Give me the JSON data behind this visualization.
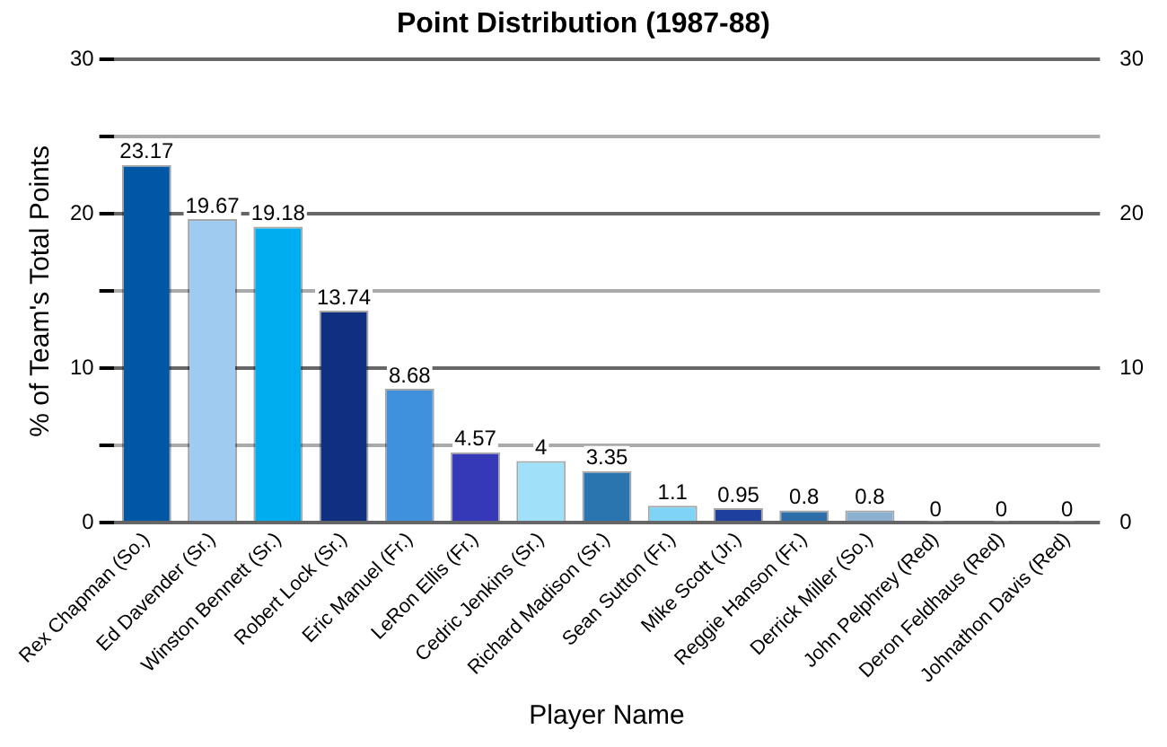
{
  "chart_data": {
    "type": "bar",
    "title": "Point Distribution (1987-88)",
    "xlabel": "Player Name",
    "ylabel": "% of Team's Total Points",
    "categories": [
      "Rex Chapman (So.)",
      "Ed Davender (Sr.)",
      "Winston Bennett (Sr.)",
      "Robert Lock (Sr.)",
      "Eric Manuel (Fr.)",
      "LeRon Ellis (Fr.)",
      "Cedric Jenkins (Sr.)",
      "Richard Madison (Sr.)",
      "Sean Sutton (Fr.)",
      "Mike Scott (Jr.)",
      "Reggie Hanson (Fr.)",
      "Derrick Miller (So.)",
      "John Pelphrey (Red)",
      "Deron Feldhaus (Red)",
      "Johnathon Davis (Red)"
    ],
    "values": [
      23.17,
      19.67,
      19.18,
      13.74,
      8.68,
      4.57,
      4,
      3.35,
      1.1,
      0.95,
      0.8,
      0.8,
      0,
      0,
      0
    ],
    "colors": [
      "#0057a5",
      "#9ecbef",
      "#00aeef",
      "#0f2f80",
      "#3f91de",
      "#3539b8",
      "#a0e0f8",
      "#2a74b0",
      "#7fd4f5",
      "#1f3f9f",
      "#2d6ea8",
      "#8cb0d0",
      "#0057a5",
      "#9ecbef",
      "#00aeef"
    ],
    "data_labels": true,
    "ylim": [
      0,
      30
    ],
    "yticks": [
      0,
      {
        "value": 5,
        "label": null
      },
      10,
      {
        "value": 15,
        "label": null
      },
      20,
      {
        "value": 25,
        "label": null
      },
      30
    ],
    "y2lim": [
      0,
      30
    ],
    "y2ticks": [
      0,
      {
        "value": 5,
        "label": null
      },
      10,
      {
        "value": 15,
        "label": null
      },
      20,
      {
        "value": 25,
        "label": null
      },
      30
    ],
    "grid": "y",
    "legend": false
  }
}
